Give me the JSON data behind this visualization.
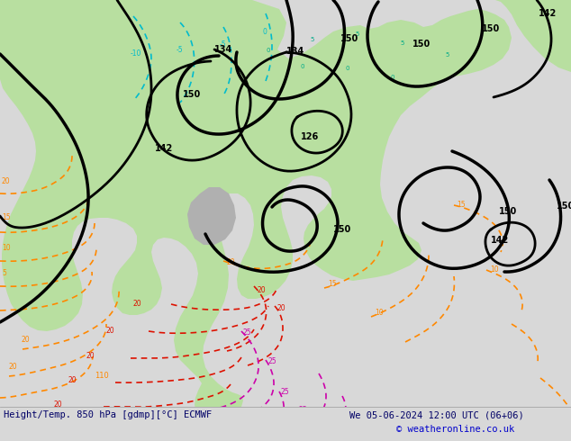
{
  "title_left": "Height/Temp. 850 hPa [gdmp][°C] ECMWF",
  "title_right": "We 05-06-2024 12:00 UTC (06+06)",
  "copyright": "© weatheronline.co.uk",
  "bg_color": "#d8d8d8",
  "map_bg_light": "#e0e0e0",
  "green_fill": "#b8dfa0",
  "gray_land": "#b0b0b0",
  "fig_width": 6.34,
  "fig_height": 4.9,
  "dpi": 100,
  "bottom_bar_height": 38,
  "color_cyan": "#00BBCC",
  "color_teal": "#00AA88",
  "color_limegreen": "#88CC00",
  "color_orange": "#FF8800",
  "color_red": "#DD1100",
  "color_magenta": "#CC00AA",
  "color_black": "#000000",
  "color_darkblue": "#000066"
}
